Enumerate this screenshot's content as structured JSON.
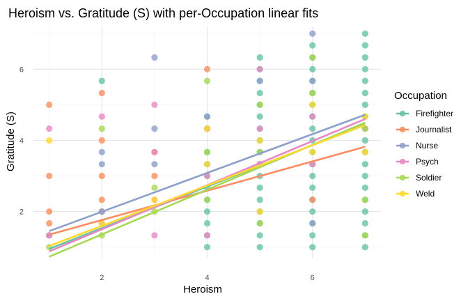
{
  "chart_data": {
    "type": "scatter",
    "title": "Heroism vs. Gratitude (S) with per-Occupation linear fits",
    "xlabel": "Heroism",
    "ylabel": "Gratitude (S)",
    "xlim": [
      0.7,
      7.3
    ],
    "ylim": [
      0.7,
      7.2
    ],
    "x_ticks": [
      2,
      4,
      6
    ],
    "y_ticks": [
      2,
      4,
      6
    ],
    "x_tick_labels": [
      "2",
      "4",
      "6"
    ],
    "y_tick_labels": [
      "2",
      "4",
      "6"
    ],
    "grid": true,
    "legend": {
      "title": "Occupation",
      "position": "right"
    },
    "series": [
      {
        "name": "Firefighter",
        "color": "#66c2a5",
        "points": [
          [
            2,
            5.67
          ],
          [
            4,
            4.67
          ],
          [
            5,
            6.33
          ],
          [
            5,
            6
          ],
          [
            5,
            5.67
          ],
          [
            5,
            5.33
          ],
          [
            5,
            5
          ],
          [
            5,
            4.67
          ],
          [
            5,
            4.33
          ],
          [
            5,
            4
          ],
          [
            5,
            3.67
          ],
          [
            5,
            3.33
          ],
          [
            5,
            3
          ],
          [
            5,
            2.67
          ],
          [
            5,
            2.33
          ],
          [
            5,
            2
          ],
          [
            5,
            1.67
          ],
          [
            5,
            1.33
          ],
          [
            5,
            1
          ],
          [
            6,
            6.67
          ],
          [
            6,
            6.33
          ],
          [
            6,
            6
          ],
          [
            6,
            5.67
          ],
          [
            6,
            5.33
          ],
          [
            6,
            5
          ],
          [
            6,
            4.67
          ],
          [
            6,
            4.33
          ],
          [
            6,
            4
          ],
          [
            6,
            3.67
          ],
          [
            6,
            3.33
          ],
          [
            6,
            3
          ],
          [
            6,
            2.67
          ],
          [
            6,
            2.33
          ],
          [
            6,
            2
          ],
          [
            6,
            1.67
          ],
          [
            6,
            1.33
          ],
          [
            6,
            1
          ],
          [
            7,
            7
          ],
          [
            7,
            6.67
          ],
          [
            7,
            6.33
          ],
          [
            7,
            6
          ],
          [
            7,
            5.67
          ],
          [
            7,
            5.33
          ],
          [
            7,
            5
          ],
          [
            7,
            4.67
          ],
          [
            7,
            4.33
          ],
          [
            7,
            4
          ],
          [
            7,
            3.67
          ],
          [
            7,
            3.33
          ],
          [
            7,
            3
          ],
          [
            7,
            2.67
          ],
          [
            7,
            2.33
          ],
          [
            7,
            2
          ],
          [
            7,
            1.67
          ],
          [
            7,
            1.33
          ],
          [
            7,
            1
          ],
          [
            4,
            3.67
          ],
          [
            4,
            3.33
          ],
          [
            4,
            3
          ],
          [
            4,
            2.67
          ],
          [
            4,
            2.33
          ],
          [
            4,
            2
          ],
          [
            4,
            1.67
          ],
          [
            4,
            1.33
          ],
          [
            4,
            1
          ]
        ],
        "fit": [
          [
            1,
            0.95
          ],
          [
            7,
            4.45
          ]
        ]
      },
      {
        "name": "Journalist",
        "color": "#fc8d62",
        "points": [
          [
            1,
            5
          ],
          [
            1,
            3
          ],
          [
            1,
            2
          ],
          [
            1,
            1.67
          ],
          [
            1,
            1.33
          ],
          [
            2,
            5.33
          ],
          [
            2,
            4
          ],
          [
            2,
            3
          ],
          [
            2,
            2.33
          ],
          [
            2,
            2
          ],
          [
            3,
            3.67
          ],
          [
            3,
            3
          ],
          [
            4,
            6
          ],
          [
            4,
            4.33
          ],
          [
            6,
            2.33
          ]
        ],
        "fit": [
          [
            1,
            1.35
          ],
          [
            7,
            3.82
          ]
        ]
      },
      {
        "name": "Nurse",
        "color": "#8da0cb",
        "points": [
          [
            1,
            1.33
          ],
          [
            2,
            3.67
          ],
          [
            2,
            3.33
          ],
          [
            2,
            2
          ],
          [
            3,
            6.33
          ],
          [
            3,
            4.33
          ],
          [
            3,
            3.33
          ],
          [
            4,
            4.67
          ],
          [
            4,
            4.33
          ],
          [
            5,
            5.67
          ],
          [
            5,
            3.33
          ],
          [
            6,
            7
          ],
          [
            6,
            5.67
          ],
          [
            6,
            1.67
          ]
        ],
        "fit": [
          [
            1,
            1.45
          ],
          [
            7,
            4.72
          ]
        ]
      },
      {
        "name": "Psych",
        "color": "#e78ac3",
        "points": [
          [
            1,
            4.33
          ],
          [
            1,
            1.33
          ],
          [
            2,
            4.67
          ],
          [
            2,
            1.67
          ],
          [
            3,
            5
          ],
          [
            3,
            3.67
          ],
          [
            3,
            2.33
          ],
          [
            3,
            1.33
          ],
          [
            4,
            4.33
          ],
          [
            4,
            3
          ],
          [
            4,
            1.33
          ],
          [
            5,
            6
          ],
          [
            5,
            4.33
          ],
          [
            5,
            3.33
          ],
          [
            6,
            4.67
          ],
          [
            6,
            3.33
          ],
          [
            7,
            4.33
          ]
        ],
        "fit": [
          [
            1,
            0.88
          ],
          [
            7,
            4.6
          ]
        ]
      },
      {
        "name": "Soldier",
        "color": "#a6d854",
        "points": [
          [
            1,
            1
          ],
          [
            2,
            4.33
          ],
          [
            2,
            1.33
          ],
          [
            3,
            2.67
          ],
          [
            3,
            2
          ],
          [
            4,
            5.67
          ],
          [
            4,
            3.67
          ],
          [
            4,
            2.33
          ],
          [
            5,
            5
          ],
          [
            5,
            3.67
          ],
          [
            5,
            1.67
          ],
          [
            6,
            6.33
          ],
          [
            6,
            5.33
          ],
          [
            7,
            4.33
          ],
          [
            7,
            2.33
          ],
          [
            7,
            1.33
          ]
        ],
        "fit": [
          [
            1,
            0.73
          ],
          [
            7,
            4.5
          ]
        ]
      },
      {
        "name": "Weld",
        "color": "#ffd92f",
        "points": [
          [
            1,
            4
          ],
          [
            2,
            1.67
          ],
          [
            3,
            2.33
          ],
          [
            4,
            4.33
          ],
          [
            4,
            3.33
          ],
          [
            5,
            4
          ],
          [
            5,
            2
          ],
          [
            6,
            5
          ],
          [
            6,
            3.67
          ],
          [
            7,
            4.67
          ],
          [
            7,
            3.67
          ]
        ],
        "fit": [
          [
            1,
            1.03
          ],
          [
            7,
            4.43
          ]
        ]
      }
    ]
  }
}
